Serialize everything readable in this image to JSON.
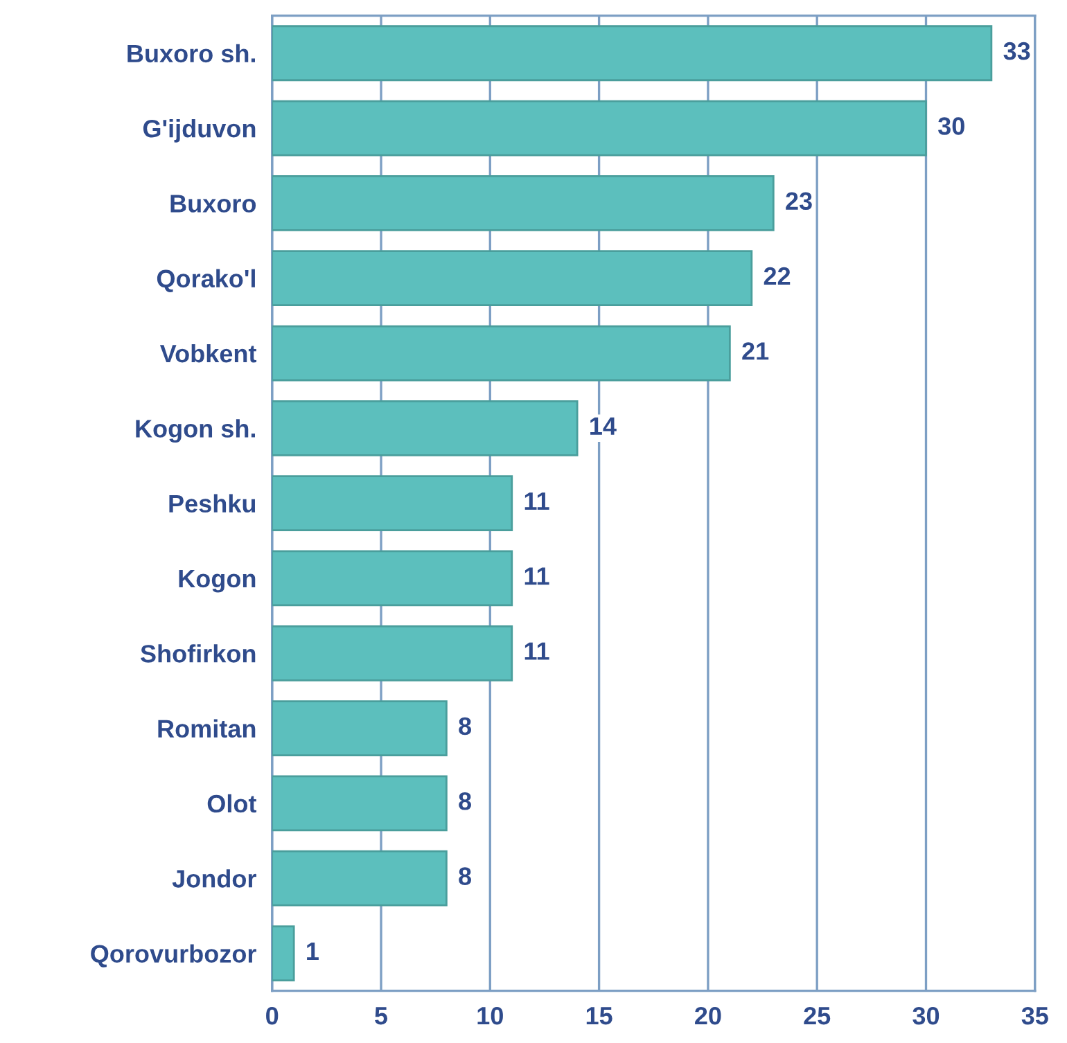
{
  "chart_data": {
    "type": "bar",
    "orientation": "horizontal",
    "categories": [
      "Buxoro sh.",
      "G'ijduvon",
      "Buxoro",
      "Qorako'l",
      "Vobkent",
      "Kogon sh.",
      "Peshku",
      "Kogon",
      "Shofirkon",
      "Romitan",
      "Olot",
      "Jondor",
      "Qorovurbozor"
    ],
    "values": [
      33,
      30,
      23,
      22,
      21,
      14,
      11,
      11,
      11,
      8,
      8,
      8,
      1
    ],
    "color": "#5cbfbd",
    "xlim": [
      0,
      35
    ],
    "xticks": [
      0,
      5,
      10,
      15,
      20,
      25,
      30,
      35
    ],
    "grid": "x",
    "data_labels": true
  }
}
